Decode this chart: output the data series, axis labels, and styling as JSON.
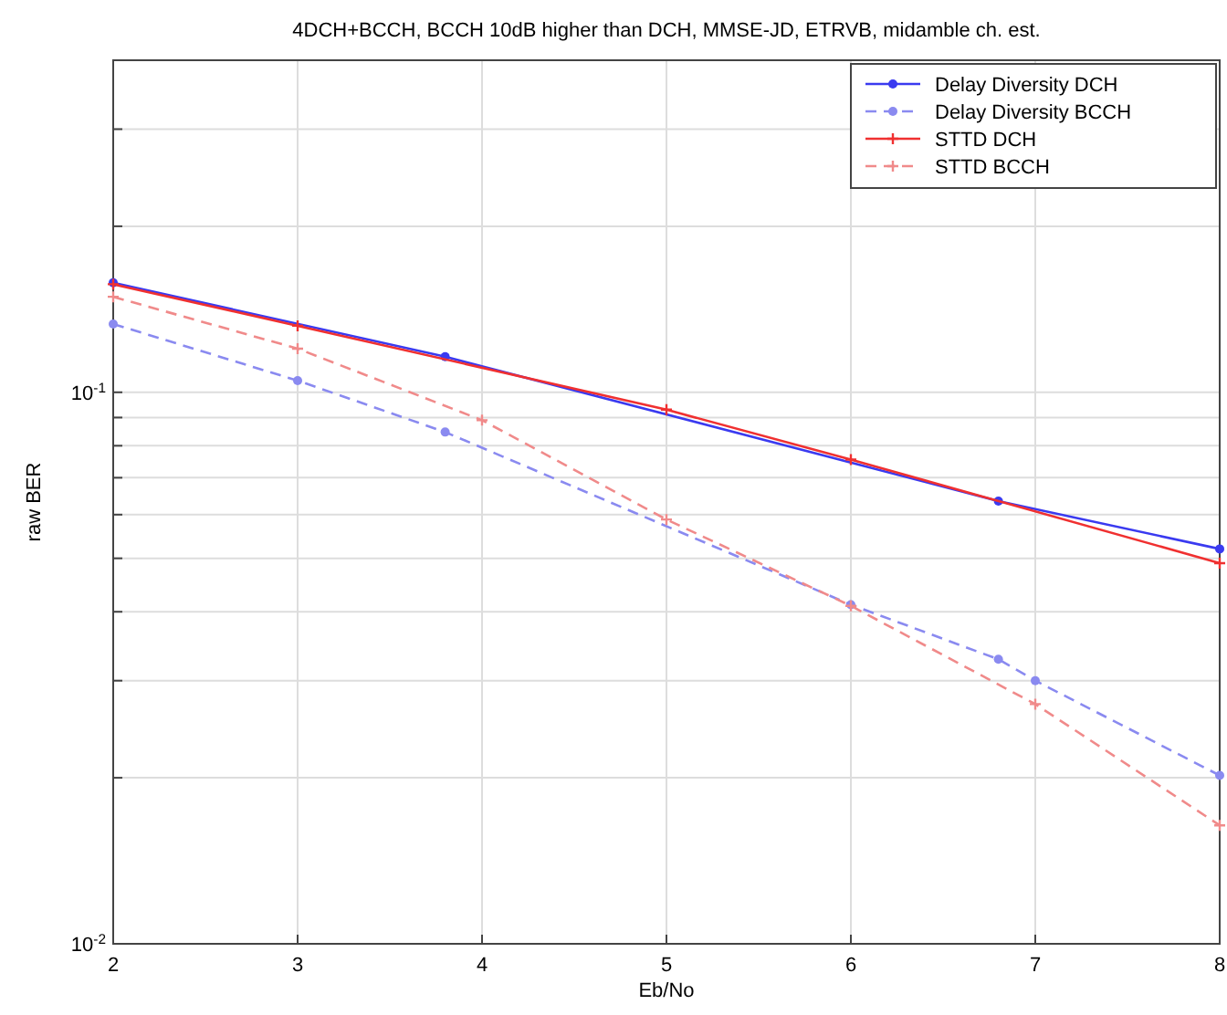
{
  "chart_data": {
    "type": "line",
    "title": "4DCH+BCCH, BCCH 10dB higher than DCH, MMSE-JD, ETRVB, midamble ch. est.",
    "xlabel": "Eb/No",
    "ylabel": "raw BER",
    "log": "y",
    "grid": true,
    "legend": "top right",
    "xlim": [
      2,
      8
    ],
    "xticks": [
      2,
      3,
      4,
      5,
      6,
      7,
      8
    ],
    "ylim": [
      0.01,
      0.4
    ],
    "yticks": [
      {
        "value": 0.01,
        "label": "10$^{-2}$"
      },
      {
        "value": 0.02,
        "label": null
      },
      {
        "value": 0.03,
        "label": null
      },
      {
        "value": 0.04,
        "label": null
      },
      {
        "value": 0.05,
        "label": null
      },
      {
        "value": 0.06,
        "label": null
      },
      {
        "value": 0.07,
        "label": null
      },
      {
        "value": 0.08,
        "label": null
      },
      {
        "value": 0.09,
        "label": null
      },
      {
        "value": 0.1,
        "label": "10$^{-1}$"
      },
      {
        "value": 0.2,
        "label": null
      },
      {
        "value": 0.3,
        "label": null
      }
    ],
    "series": [
      {
        "name": "Delay Diversity DCH",
        "color": "#3a3af0",
        "line_style": "solid",
        "marker": "circle",
        "x": [
          2,
          3.8,
          6.8,
          8
        ],
        "values": [
          0.158,
          0.116,
          0.0635,
          0.052
        ]
      },
      {
        "name": "Delay Diversity BCCH",
        "color": "#8a8af0",
        "line_style": "dashed",
        "marker": "circle",
        "x": [
          2,
          3,
          3.8,
          6,
          6.8,
          7,
          8
        ],
        "values": [
          0.133,
          0.105,
          0.0847,
          0.0412,
          0.0328,
          0.03,
          0.0202
        ]
      },
      {
        "name": "STTD DCH",
        "color": "#f03030",
        "line_style": "solid",
        "marker": "cross",
        "x": [
          2,
          3,
          5,
          6,
          8
        ],
        "values": [
          0.157,
          0.132,
          0.093,
          0.0755,
          0.049
        ]
      },
      {
        "name": "STTD BCCH",
        "color": "#f08a8a",
        "line_style": "dashed",
        "marker": "cross",
        "x": [
          2,
          3,
          4,
          5,
          6,
          7,
          8
        ],
        "values": [
          0.149,
          0.12,
          0.089,
          0.0588,
          0.041,
          0.0272,
          0.0164
        ]
      }
    ]
  }
}
